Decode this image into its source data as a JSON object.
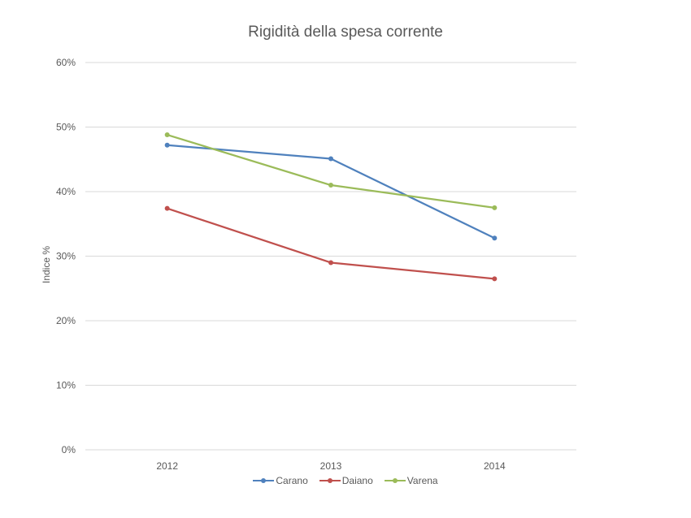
{
  "chart_data": {
    "type": "line",
    "title": "Rigidità della spesa corrente",
    "xlabel": "",
    "ylabel": "Indice %",
    "categories": [
      "2012",
      "2013",
      "2014"
    ],
    "series": [
      {
        "name": "Carano",
        "color": "#4F81BD",
        "values": [
          47.2,
          45.1,
          32.8
        ]
      },
      {
        "name": "Daiano",
        "color": "#C0504D",
        "values": [
          37.4,
          29.0,
          26.5
        ]
      },
      {
        "name": "Varena",
        "color": "#9BBB59",
        "values": [
          48.8,
          41.0,
          37.5
        ]
      }
    ],
    "ylim": [
      0,
      60
    ],
    "yticks": [
      "0%",
      "10%",
      "20%",
      "30%",
      "40%",
      "50%",
      "60%"
    ],
    "grid": true,
    "legend_position": "bottom"
  }
}
